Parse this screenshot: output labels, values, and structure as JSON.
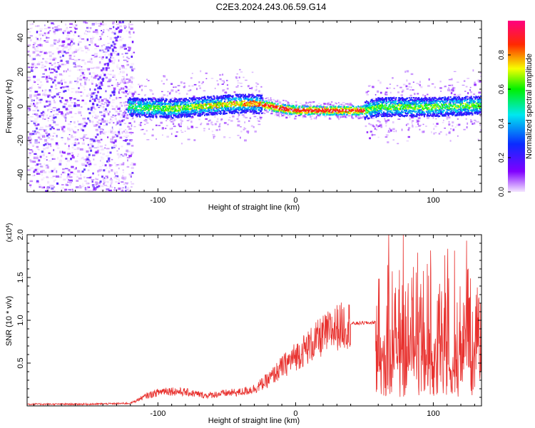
{
  "figure": {
    "title": "C2E3.2024.243.06.59.G14"
  },
  "chart_data": [
    {
      "type": "heatmap",
      "title": "C2E3.2024.243.06.59.G14",
      "xlabel": "Height of straight line (km)",
      "ylabel": "Frequency (Hz)",
      "xlim": [
        -195,
        135
      ],
      "ylim": [
        -50,
        50
      ],
      "x_ticks": [
        -100,
        0,
        100
      ],
      "y_ticks": [
        -40,
        -20,
        0,
        20,
        40
      ],
      "colorbar": {
        "label": "Normalized spectral amplitude",
        "range": [
          0.0,
          1.0
        ],
        "ticks": [
          0.0,
          0.2,
          0.4,
          0.6,
          0.8
        ],
        "colormap": "rainbow (violet → blue → cyan → green → yellow → red → magenta)"
      },
      "features": {
        "noise_region_x": [
          -195,
          -122
        ],
        "signal_band_x": [
          -122,
          135
        ],
        "signal_center_freq": [
          [
            -120,
            0
          ],
          [
            -90,
            -1
          ],
          [
            -60,
            1
          ],
          [
            -40,
            2
          ],
          [
            -30,
            2
          ],
          [
            -22,
            1
          ],
          [
            -10,
            -1
          ],
          [
            0,
            -2
          ],
          [
            20,
            -2
          ],
          [
            50,
            -2
          ],
          [
            60,
            0
          ],
          [
            80,
            0
          ],
          [
            100,
            0
          ],
          [
            135,
            1
          ]
        ],
        "signal_peak_x": [
          -25,
          50
        ]
      }
    },
    {
      "type": "line",
      "xlabel": "Height of straight line (km)",
      "ylabel": "SNR (10 * v/v)",
      "y_multiplier": "(x10^4)",
      "xlim": [
        -195,
        135
      ],
      "ylim": [
        0,
        2.0
      ],
      "x_ticks": [
        -100,
        0,
        100
      ],
      "y_ticks": [
        0.5,
        1.0,
        1.5,
        2.0
      ],
      "series": [
        {
          "color": "#e8312e",
          "envelope_points": [
            [
              -195,
              0.02
            ],
            [
              -150,
              0.02
            ],
            [
              -120,
              0.03
            ],
            [
              -108,
              0.12
            ],
            [
              -95,
              0.18
            ],
            [
              -80,
              0.16
            ],
            [
              -65,
              0.12
            ],
            [
              -50,
              0.15
            ],
            [
              -40,
              0.16
            ],
            [
              -30,
              0.2
            ],
            [
              -20,
              0.3
            ],
            [
              -10,
              0.45
            ],
            [
              0,
              0.58
            ],
            [
              10,
              0.7
            ],
            [
              20,
              0.82
            ],
            [
              30,
              0.92
            ],
            [
              40,
              0.96
            ],
            [
              50,
              0.97
            ],
            [
              55,
              0.97
            ],
            [
              58,
              0.98
            ],
            [
              70,
              0.9
            ],
            [
              90,
              0.85
            ],
            [
              110,
              0.8
            ],
            [
              135,
              0.8
            ]
          ]
        }
      ]
    }
  ]
}
